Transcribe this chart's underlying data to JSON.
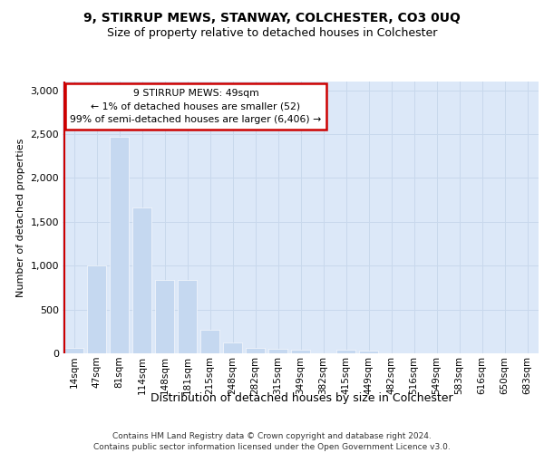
{
  "title1": "9, STIRRUP MEWS, STANWAY, COLCHESTER, CO3 0UQ",
  "title2": "Size of property relative to detached houses in Colchester",
  "xlabel": "Distribution of detached houses by size in Colchester",
  "ylabel": "Number of detached properties",
  "categories": [
    "14sqm",
    "47sqm",
    "81sqm",
    "114sqm",
    "148sqm",
    "181sqm",
    "215sqm",
    "248sqm",
    "282sqm",
    "315sqm",
    "349sqm",
    "382sqm",
    "415sqm",
    "449sqm",
    "482sqm",
    "516sqm",
    "549sqm",
    "583sqm",
    "616sqm",
    "650sqm",
    "683sqm"
  ],
  "values": [
    60,
    1000,
    2470,
    1660,
    840,
    840,
    270,
    120,
    60,
    50,
    40,
    0,
    40,
    30,
    0,
    0,
    0,
    0,
    0,
    0,
    0
  ],
  "bar_color": "#c5d8f0",
  "highlight_line_color": "#cc0000",
  "highlight_index": 0,
  "annotation_text": "9 STIRRUP MEWS: 49sqm\n← 1% of detached houses are smaller (52)\n99% of semi-detached houses are larger (6,406) →",
  "annotation_box_facecolor": "#ffffff",
  "annotation_box_edgecolor": "#cc0000",
  "footer_line1": "Contains HM Land Registry data © Crown copyright and database right 2024.",
  "footer_line2": "Contains public sector information licensed under the Open Government Licence v3.0.",
  "ylim": [
    0,
    3100
  ],
  "yticks": [
    0,
    500,
    1000,
    1500,
    2000,
    2500,
    3000
  ],
  "grid_color": "#c8d8ec",
  "plot_bg_color": "#dce8f8",
  "fig_bg_color": "#ffffff"
}
